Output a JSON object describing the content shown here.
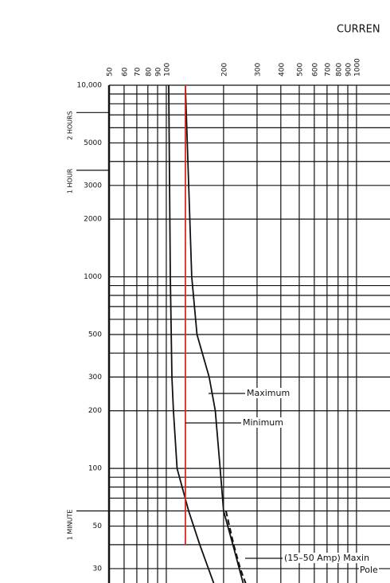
{
  "chart_data": {
    "type": "line",
    "title": "CURREN",
    "xscale": "log",
    "yscale": "log",
    "xlim": [
      50,
      1500
    ],
    "ylim": [
      25,
      10000
    ],
    "xticks": [
      50,
      60,
      70,
      80,
      90,
      100,
      200,
      300,
      400,
      500,
      600,
      700,
      800,
      900,
      1000
    ],
    "yticks": [
      {
        "value": 10000,
        "label": "10,000"
      },
      5000,
      3000,
      2000,
      1000,
      500,
      300,
      200,
      100,
      50,
      30
    ],
    "yminor": [
      9000,
      8000,
      7000,
      6000,
      4000,
      900,
      800,
      700,
      600,
      400,
      90,
      80,
      70,
      60,
      40
    ],
    "time_marks": [
      {
        "value": 7200,
        "label": "2 HOURS"
      },
      {
        "value": 3600,
        "label": "1 HOUR"
      },
      {
        "value": 60,
        "label": "1 MINUTE"
      }
    ],
    "grid": true,
    "series": [
      {
        "color": "#111111",
        "dash": false,
        "x": [
          103,
          105,
          107,
          109,
          114,
          131,
          150,
          178
        ],
        "values": [
          10000,
          1000,
          300,
          200,
          100,
          60,
          40,
          25
        ]
      },
      {
        "color": "#111111",
        "dash": false,
        "x": [
          126,
          136,
          145,
          168,
          181,
          192,
          200,
          224,
          254
        ],
        "values": [
          10000,
          1000,
          500,
          300,
          200,
          100,
          60,
          40,
          25
        ]
      },
      {
        "color": "#111111",
        "dash": true,
        "x": [
          206,
          226,
          245,
          262
        ],
        "values": [
          60,
          40,
          30,
          25
        ]
      },
      {
        "color": "#d42a2a",
        "dash": false,
        "x": [
          126,
          126
        ],
        "values": [
          10000,
          40
        ]
      }
    ],
    "annotations": [
      "Maximum",
      "Minimum",
      "(15–50 Amp) Maxin",
      "Pole"
    ]
  }
}
